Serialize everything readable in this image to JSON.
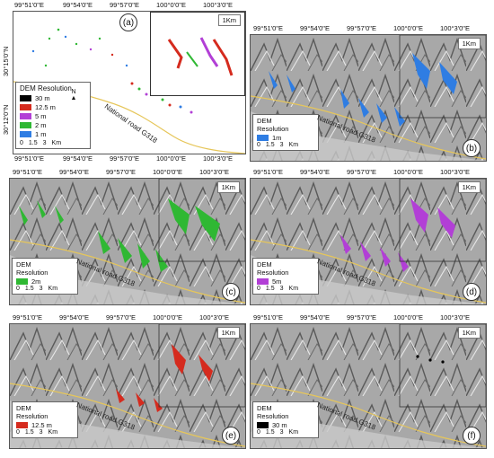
{
  "panels": [
    {
      "id": "a",
      "label": "(a)",
      "km": "1Km",
      "legend": {
        "title": "DEM Resolution",
        "items": [
          {
            "label": "30 m",
            "color": "#000000"
          },
          {
            "label": "12.5 m",
            "color": "#d52b1e"
          },
          {
            "label": "5 m",
            "color": "#b23fd6"
          },
          {
            "label": "2 m",
            "color": "#2fb833"
          },
          {
            "label": "1 m",
            "color": "#2f7de3"
          }
        ]
      },
      "scale": {
        "ticks": [
          "0",
          "1.5",
          "3"
        ],
        "unit": "Km"
      },
      "road": "National road G318"
    },
    {
      "id": "b",
      "label": "(b)",
      "km": "1Km",
      "legend": {
        "title": "DEM\nResolution",
        "items": [
          {
            "label": "1m",
            "color": "#2f7de3"
          }
        ]
      },
      "scale": {
        "ticks": [
          "0",
          "1.5",
          "3"
        ],
        "unit": "Km"
      },
      "road": "National road G318"
    },
    {
      "id": "c",
      "label": "(c)",
      "km": "1Km",
      "legend": {
        "title": "DEM\nResolution",
        "items": [
          {
            "label": "2m",
            "color": "#2fb833"
          }
        ]
      },
      "scale": {
        "ticks": [
          "0",
          "1.5",
          "3"
        ],
        "unit": "Km"
      },
      "road": "National road G318"
    },
    {
      "id": "d",
      "label": "(d)",
      "km": "1Km",
      "legend": {
        "title": "DEM\nResolution",
        "items": [
          {
            "label": "5m",
            "color": "#b23fd6"
          }
        ]
      },
      "scale": {
        "ticks": [
          "0",
          "1.5",
          "3"
        ],
        "unit": "Km"
      },
      "road": "National road G318"
    },
    {
      "id": "e",
      "label": "(e)",
      "km": "1Km",
      "legend": {
        "title": "DEM\nResolution",
        "items": [
          {
            "label": "12.5 m",
            "color": "#d52b1e"
          }
        ]
      },
      "scale": {
        "ticks": [
          "0",
          "1.5",
          "3"
        ],
        "unit": "Km"
      },
      "road": "National road G318"
    },
    {
      "id": "f",
      "label": "(f)",
      "km": "1Km",
      "legend": {
        "title": "DEM\nResolution",
        "items": [
          {
            "label": "30 m",
            "color": "#000000"
          }
        ]
      },
      "scale": {
        "ticks": [
          "0",
          "1.5",
          "3"
        ],
        "unit": "Km"
      },
      "road": "National road G318"
    }
  ],
  "lon_labels": [
    "99°51'0\"E",
    "99°54'0\"E",
    "99°57'0\"E",
    "100°0'0\"E",
    "100°3'0\"E"
  ],
  "lat_labels": [
    "30°15'0\"N",
    "30°12'0\"N"
  ],
  "north_symbol": "N",
  "colors": {
    "road": "#e6c65a",
    "hillshade": "#9a9a9a"
  }
}
